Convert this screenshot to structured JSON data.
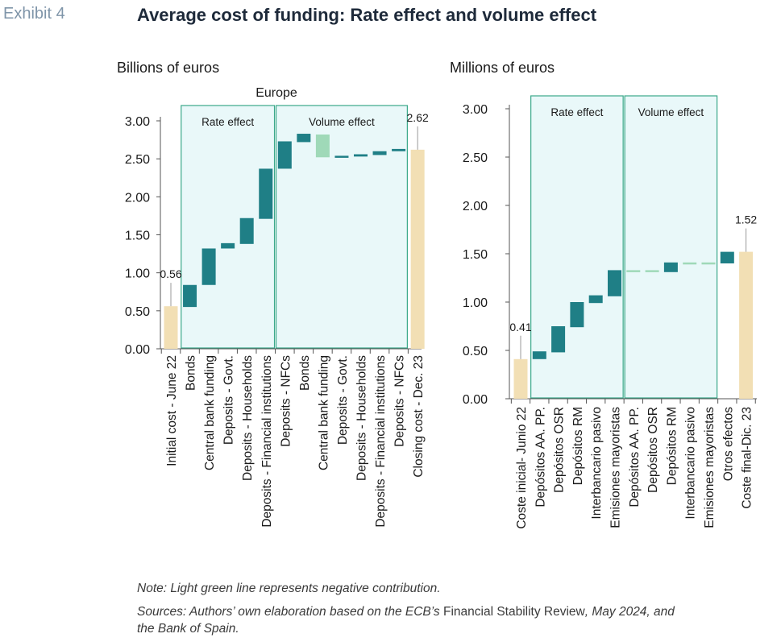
{
  "header": {
    "exhibit": "Exhibit 4",
    "title": "Average cost of funding: Rate effect and volume effect"
  },
  "colors": {
    "increase": "#1f7f86",
    "negative": "#9fd9b8",
    "endpoint": "#f2dfb4",
    "box_fill": "#e9f8f9",
    "box_border": "#3aa88a"
  },
  "chart_data": [
    {
      "type": "bar",
      "subtype": "waterfall",
      "unit": "Billions of euros",
      "title": "Europe",
      "ylim": [
        0,
        3.0
      ],
      "yticks": [
        "0.00",
        "0.50",
        "1.00",
        "1.50",
        "2.00",
        "2.50",
        "3.00"
      ],
      "groups": [
        {
          "label": "Rate effect",
          "from_index": 1,
          "to_index": 5
        },
        {
          "label": "Volume effect",
          "from_index": 6,
          "to_index": 12
        }
      ],
      "categories": [
        "Initial cost - June 22",
        "Bonds",
        "Central bank funding",
        "Deposits - Govt.",
        "Deposits - Households",
        "Deposits - Financial institutions",
        "Deposits - NFCs",
        "Bonds",
        "Central bank funding",
        "Deposits - Govt.",
        "Deposits - Households",
        "Deposits - Financial institutions",
        "Deposits - NFCs",
        "Closing cost - Dec. 23"
      ],
      "bars": [
        {
          "kind": "total",
          "low": 0,
          "high": 0.56,
          "label": "0.56"
        },
        {
          "kind": "increase",
          "low": 0.55,
          "high": 0.84
        },
        {
          "kind": "increase",
          "low": 0.84,
          "high": 1.32
        },
        {
          "kind": "increase",
          "low": 1.32,
          "high": 1.39
        },
        {
          "kind": "increase",
          "low": 1.38,
          "high": 1.72
        },
        {
          "kind": "increase",
          "low": 1.71,
          "high": 2.37
        },
        {
          "kind": "increase",
          "low": 2.37,
          "high": 2.73
        },
        {
          "kind": "increase",
          "low": 2.72,
          "high": 2.83
        },
        {
          "kind": "decrease",
          "low": 2.52,
          "high": 2.82
        },
        {
          "kind": "increase",
          "low": 2.52,
          "high": 2.54
        },
        {
          "kind": "increase",
          "low": 2.53,
          "high": 2.56
        },
        {
          "kind": "increase",
          "low": 2.55,
          "high": 2.6
        },
        {
          "kind": "increase",
          "low": 2.6,
          "high": 2.63
        },
        {
          "kind": "total",
          "low": 0,
          "high": 2.62,
          "label": "2.62"
        }
      ]
    },
    {
      "type": "bar",
      "subtype": "waterfall",
      "unit": "Millions of euros",
      "title": "",
      "ylim": [
        0,
        3.0
      ],
      "yticks": [
        "0.00",
        "0.50",
        "1.00",
        "1.50",
        "2.00",
        "2.50",
        "3.00"
      ],
      "groups": [
        {
          "label": "Rate effect",
          "from_index": 1,
          "to_index": 5
        },
        {
          "label": "Volume effect",
          "from_index": 6,
          "to_index": 10
        }
      ],
      "categories": [
        "Coste inicial- Junio 22",
        "Depósitos AA. PP.",
        "Depósitos OSR",
        "Depósitos RM",
        "Interbancario pasivo",
        "Emisiones mayoristas",
        "Depósitos AA. PP.",
        "Depósitos OSR",
        "Depósitos RM",
        "Interbancario pasivo",
        "Emisiones mayoristas",
        "Otros efectos",
        "Coste final-Dic. 23"
      ],
      "bars": [
        {
          "kind": "total",
          "low": 0,
          "high": 0.41,
          "label": "0.41"
        },
        {
          "kind": "increase",
          "low": 0.41,
          "high": 0.49
        },
        {
          "kind": "increase",
          "low": 0.48,
          "high": 0.75
        },
        {
          "kind": "increase",
          "low": 0.74,
          "high": 1.0
        },
        {
          "kind": "increase",
          "low": 0.99,
          "high": 1.07
        },
        {
          "kind": "increase",
          "low": 1.06,
          "high": 1.33
        },
        {
          "kind": "decrease",
          "low": 1.32,
          "high": 1.33
        },
        {
          "kind": "decrease",
          "low": 1.32,
          "high": 1.33
        },
        {
          "kind": "increase",
          "low": 1.31,
          "high": 1.41
        },
        {
          "kind": "decrease",
          "low": 1.39,
          "high": 1.41
        },
        {
          "kind": "decrease",
          "low": 1.39,
          "high": 1.41
        },
        {
          "kind": "increase",
          "low": 1.4,
          "high": 1.52
        },
        {
          "kind": "total",
          "low": 0,
          "high": 1.52,
          "label": "1.52"
        }
      ]
    }
  ],
  "footer": {
    "note": "Note: Light green line represents negative contribution.",
    "sources_1": "Sources: Authors’ own elaboration based on the ECB’s ",
    "sources_upright": "Financial Stability Review",
    "sources_2": ", May 2024, and",
    "sources_3": "the Bank of Spain."
  }
}
